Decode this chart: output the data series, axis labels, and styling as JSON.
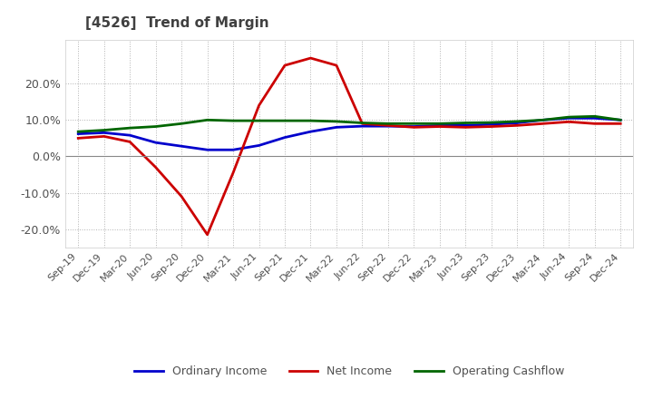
{
  "title": "[4526]  Trend of Margin",
  "title_color": "#404040",
  "x_labels": [
    "Sep-19",
    "Dec-19",
    "Mar-20",
    "Jun-20",
    "Sep-20",
    "Dec-20",
    "Mar-21",
    "Jun-21",
    "Sep-21",
    "Dec-21",
    "Mar-22",
    "Jun-22",
    "Sep-22",
    "Dec-22",
    "Mar-23",
    "Jun-23",
    "Sep-23",
    "Dec-23",
    "Mar-24",
    "Jun-24",
    "Sep-24",
    "Dec-24"
  ],
  "ylim": [
    -0.25,
    0.32
  ],
  "yticks": [
    -0.2,
    -0.1,
    0.0,
    0.1,
    0.2
  ],
  "ordinary_income": [
    0.062,
    0.065,
    0.058,
    0.038,
    0.028,
    0.018,
    0.018,
    0.03,
    0.052,
    0.068,
    0.08,
    0.083,
    0.083,
    0.082,
    0.085,
    0.085,
    0.088,
    0.092,
    0.1,
    0.105,
    0.105,
    0.1
  ],
  "net_income": [
    0.05,
    0.055,
    0.04,
    -0.03,
    -0.11,
    -0.215,
    -0.045,
    0.14,
    0.25,
    0.27,
    0.25,
    0.09,
    0.085,
    0.08,
    0.082,
    0.08,
    0.082,
    0.085,
    0.09,
    0.095,
    0.09,
    0.09
  ],
  "operating_cashflow": [
    0.068,
    0.072,
    0.078,
    0.082,
    0.09,
    0.1,
    0.098,
    0.098,
    0.098,
    0.098,
    0.096,
    0.092,
    0.09,
    0.09,
    0.09,
    0.092,
    0.093,
    0.096,
    0.1,
    0.108,
    0.11,
    0.1
  ],
  "ordinary_income_color": "#0000cc",
  "net_income_color": "#cc0000",
  "operating_cashflow_color": "#006600",
  "background_color": "#ffffff",
  "grid_color": "#aaaaaa",
  "legend_labels": [
    "Ordinary Income",
    "Net Income",
    "Operating Cashflow"
  ]
}
